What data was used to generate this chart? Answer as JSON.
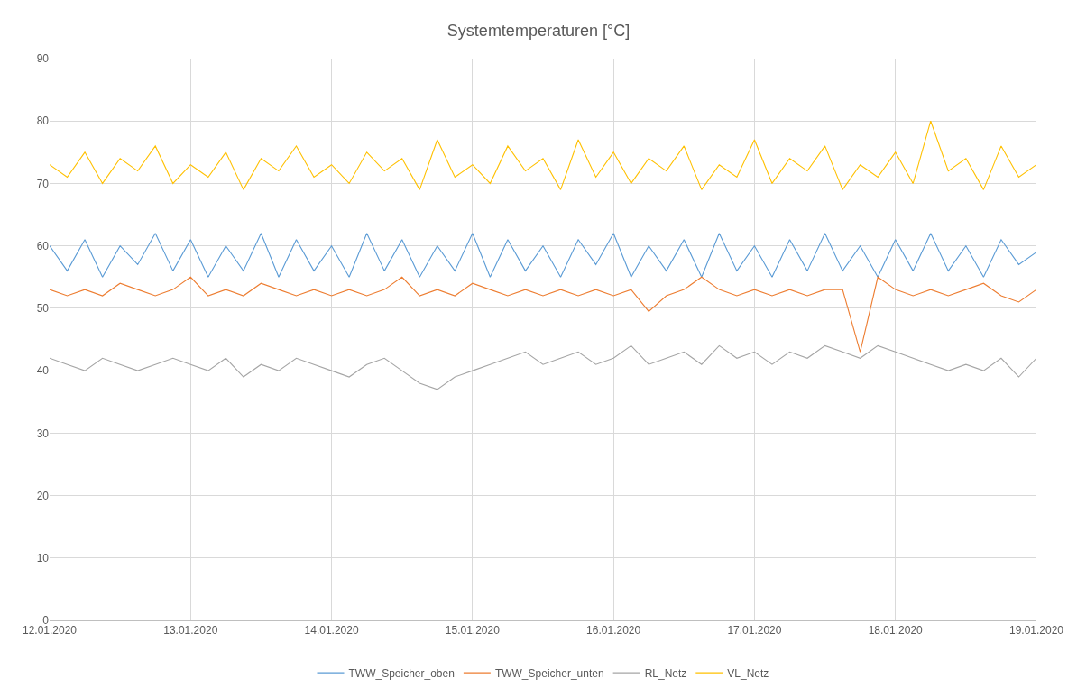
{
  "chart_data": {
    "type": "line",
    "title": "Systemtemperaturen [°C]",
    "x": [
      "2020-01-12T00:00",
      "2020-01-12T03:00",
      "2020-01-12T06:00",
      "2020-01-12T09:00",
      "2020-01-12T12:00",
      "2020-01-12T15:00",
      "2020-01-12T18:00",
      "2020-01-12T21:00",
      "2020-01-13T00:00",
      "2020-01-13T03:00",
      "2020-01-13T06:00",
      "2020-01-13T09:00",
      "2020-01-13T12:00",
      "2020-01-13T15:00",
      "2020-01-13T18:00",
      "2020-01-13T21:00",
      "2020-01-14T00:00",
      "2020-01-14T03:00",
      "2020-01-14T06:00",
      "2020-01-14T09:00",
      "2020-01-14T12:00",
      "2020-01-14T15:00",
      "2020-01-14T18:00",
      "2020-01-14T21:00",
      "2020-01-15T00:00",
      "2020-01-15T03:00",
      "2020-01-15T06:00",
      "2020-01-15T09:00",
      "2020-01-15T12:00",
      "2020-01-15T15:00",
      "2020-01-15T18:00",
      "2020-01-15T21:00",
      "2020-01-16T00:00",
      "2020-01-16T03:00",
      "2020-01-16T06:00",
      "2020-01-16T09:00",
      "2020-01-16T12:00",
      "2020-01-16T15:00",
      "2020-01-16T18:00",
      "2020-01-16T21:00",
      "2020-01-17T00:00",
      "2020-01-17T03:00",
      "2020-01-17T06:00",
      "2020-01-17T09:00",
      "2020-01-17T12:00",
      "2020-01-17T15:00",
      "2020-01-17T18:00",
      "2020-01-17T21:00",
      "2020-01-18T00:00",
      "2020-01-18T03:00",
      "2020-01-18T06:00",
      "2020-01-18T09:00",
      "2020-01-18T12:00",
      "2020-01-18T15:00",
      "2020-01-18T18:00",
      "2020-01-18T21:00",
      "2020-01-19T00:00"
    ],
    "series": [
      {
        "name": "TWW_Speicher_oben",
        "color": "#5b9bd5",
        "values": [
          60,
          56,
          61,
          55,
          60,
          57,
          62,
          56,
          61,
          55,
          60,
          56,
          62,
          55,
          61,
          56,
          60,
          55,
          62,
          56,
          61,
          55,
          60,
          56,
          62,
          55,
          61,
          56,
          60,
          55,
          61,
          57,
          62,
          55,
          60,
          56,
          61,
          55,
          62,
          56,
          60,
          55,
          61,
          56,
          62,
          56,
          60,
          55,
          61,
          56,
          62,
          56,
          60,
          55,
          61,
          57,
          59
        ]
      },
      {
        "name": "TWW_Speicher_unten",
        "color": "#ed7d31",
        "values": [
          53,
          52,
          53,
          52,
          54,
          53,
          52,
          53,
          55,
          52,
          53,
          52,
          54,
          53,
          52,
          53,
          52,
          53,
          52,
          53,
          55,
          52,
          53,
          52,
          54,
          53,
          52,
          53,
          52,
          53,
          52,
          53,
          52,
          53,
          49.5,
          52,
          53,
          55,
          53,
          52,
          53,
          52,
          53,
          52,
          53,
          53,
          43,
          55,
          53,
          52,
          53,
          52,
          53,
          54,
          52,
          51,
          53
        ]
      },
      {
        "name": "RL_Netz",
        "color": "#a5a5a5",
        "values": [
          42,
          41,
          40,
          42,
          41,
          40,
          41,
          42,
          41,
          40,
          42,
          39,
          41,
          40,
          42,
          41,
          40,
          39,
          41,
          42,
          40,
          38,
          37,
          39,
          40,
          41,
          42,
          43,
          41,
          42,
          43,
          41,
          42,
          44,
          41,
          42,
          43,
          41,
          44,
          42,
          43,
          41,
          43,
          42,
          44,
          43,
          42,
          44,
          43,
          42,
          41,
          40,
          41,
          40,
          42,
          39,
          42
        ]
      },
      {
        "name": "VL_Netz",
        "color": "#ffc000",
        "values": [
          73,
          71,
          75,
          70,
          74,
          72,
          76,
          70,
          73,
          71,
          75,
          69,
          74,
          72,
          76,
          71,
          73,
          70,
          75,
          72,
          74,
          69,
          77,
          71,
          73,
          70,
          76,
          72,
          74,
          69,
          77,
          71,
          75,
          70,
          74,
          72,
          76,
          69,
          73,
          71,
          77,
          70,
          74,
          72,
          76,
          69,
          73,
          71,
          75,
          70,
          80,
          72,
          74,
          69,
          76,
          71,
          73
        ]
      }
    ],
    "xlim": [
      "2020-01-12",
      "2020-01-19"
    ],
    "xticks": [
      {
        "value": "2020-01-12",
        "label": "12.01.2020"
      },
      {
        "value": "2020-01-13",
        "label": "13.01.2020"
      },
      {
        "value": "2020-01-14",
        "label": "14.01.2020"
      },
      {
        "value": "2020-01-15",
        "label": "15.01.2020"
      },
      {
        "value": "2020-01-16",
        "label": "16.01.2020"
      },
      {
        "value": "2020-01-17",
        "label": "17.01.2020"
      },
      {
        "value": "2020-01-18",
        "label": "18.01.2020"
      },
      {
        "value": "2020-01-19",
        "label": "19.01.2020"
      }
    ],
    "ylim": [
      0,
      90
    ],
    "yticks": [
      0,
      10,
      20,
      30,
      40,
      50,
      60,
      70,
      80,
      90
    ],
    "grid": true,
    "legend": "bottom",
    "marker": "none",
    "line_style": "solid"
  }
}
